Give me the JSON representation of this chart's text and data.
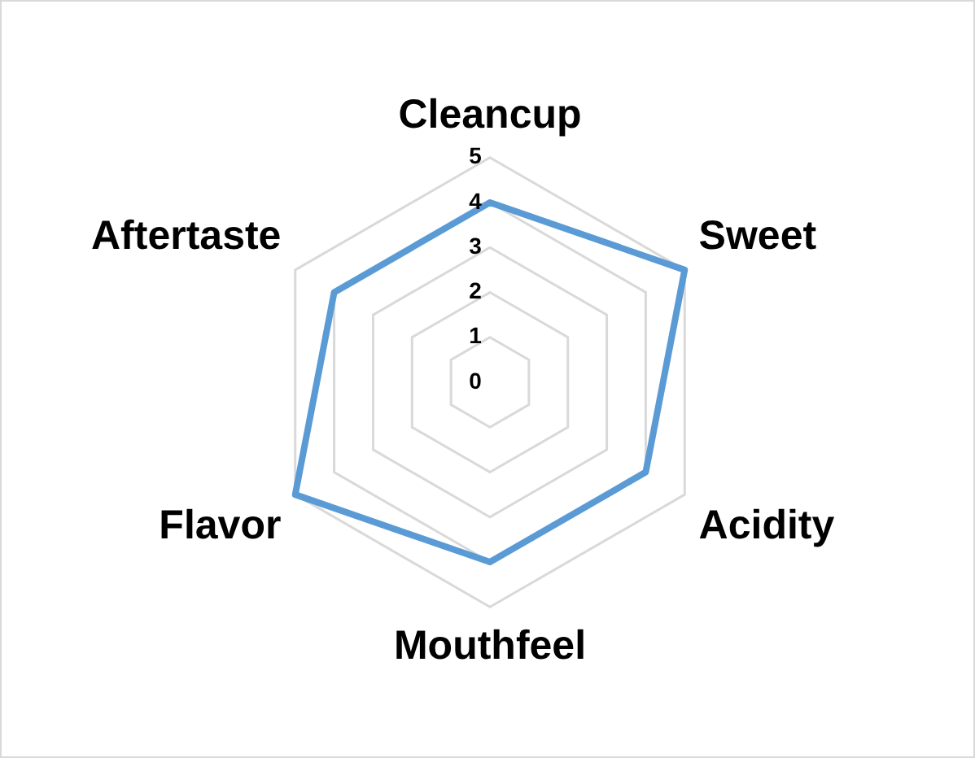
{
  "chart_data": {
    "type": "radar",
    "categories": [
      "Cleancup",
      "Sweet",
      "Acidity",
      "Mouthfeel",
      "Flavor",
      "Aftertaste"
    ],
    "series": [
      {
        "color": "#5b9bd5",
        "values": [
          4,
          5,
          4,
          4,
          5,
          4
        ]
      }
    ],
    "ylim": [
      0,
      5
    ],
    "yticks": [
      0,
      1,
      2,
      3,
      4,
      5
    ],
    "grid": true
  }
}
